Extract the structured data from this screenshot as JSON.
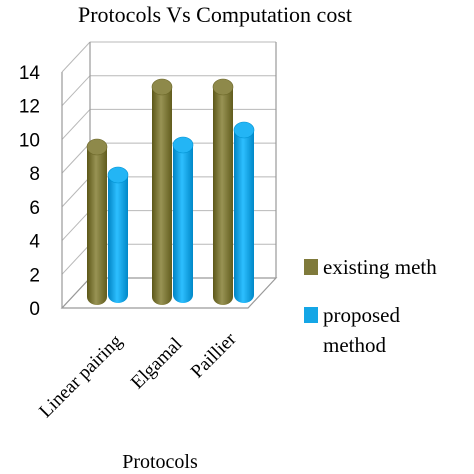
{
  "chart_data": {
    "type": "bar",
    "title": "Protocols Vs Computation cost",
    "xlabel": "Protocols",
    "ylabel": "",
    "categories": [
      "Linear pairing",
      "Elgamal",
      "Paillier"
    ],
    "series": [
      {
        "name": "existing meth",
        "values": [
          10,
          14,
          14
        ],
        "color": "#7f7a3b"
      },
      {
        "name": "proposed method",
        "values": [
          8,
          10,
          11
        ],
        "color": "#14a6e6"
      }
    ],
    "ylim": [
      0,
      14
    ],
    "yticks": [
      "0",
      "2",
      "4",
      "6",
      "8",
      "10",
      "12",
      "14"
    ],
    "grid": true,
    "legend_position": "right",
    "style": "3d-cylinder"
  }
}
